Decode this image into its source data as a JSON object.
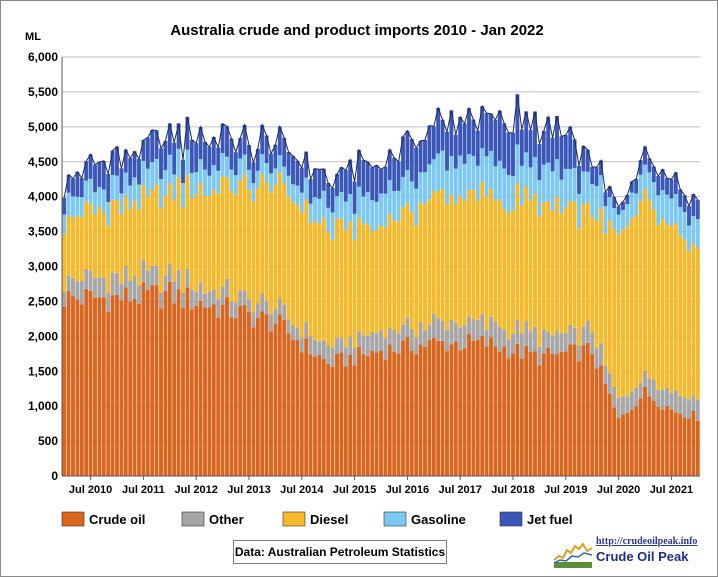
{
  "chart_data": {
    "type": "bar",
    "stacked": true,
    "title": "Australia crude and product imports 2010 - Jan 2022",
    "ylabel": "ML",
    "ylim": [
      0,
      6000
    ],
    "yticks": [
      "0",
      "500",
      "1,000",
      "1,500",
      "2,000",
      "2,500",
      "3,000",
      "3,500",
      "4,000",
      "4,500",
      "5,000",
      "5,500",
      "6,000"
    ],
    "ytick_values": [
      0,
      500,
      1000,
      1500,
      2000,
      2500,
      3000,
      3500,
      4000,
      4500,
      5000,
      5500,
      6000
    ],
    "xticks": [
      "Jul 2010",
      "Jul 2011",
      "Jul 2012",
      "Jul 2013",
      "Jul 2014",
      "Jul 2015",
      "Jul 2016",
      "Jul 2017",
      "Jul 2018",
      "Jul 2019",
      "Jul 2020",
      "Jul 2021"
    ],
    "grid": true,
    "legend_position": "bottom",
    "period_start": "Jan 2010",
    "period_end": "Jan 2022",
    "series": [
      {
        "name": "Crude oil",
        "color": "#D9651F",
        "anchors": [
          [
            2010,
            0,
            2550
          ],
          [
            2011,
            0,
            2550
          ],
          [
            2012,
            0,
            2600
          ],
          [
            2013,
            0,
            2400
          ],
          [
            2014,
            0,
            2200
          ],
          [
            2015,
            0,
            1600
          ],
          [
            2016,
            0,
            1800
          ],
          [
            2017,
            0,
            1900
          ],
          [
            2018,
            0,
            1900
          ],
          [
            2019,
            0,
            1700
          ],
          [
            2020,
            0,
            1800
          ],
          [
            2020,
            6,
            800
          ],
          [
            2021,
            0,
            1200
          ],
          [
            2021,
            6,
            950
          ],
          [
            2022,
            0,
            850
          ]
        ]
      },
      {
        "name": "Other",
        "color": "#A6A6A6",
        "anchors": [
          [
            2010,
            0,
            280
          ],
          [
            2012,
            0,
            270
          ],
          [
            2014,
            0,
            200
          ],
          [
            2016,
            0,
            260
          ],
          [
            2018,
            0,
            300
          ],
          [
            2020,
            0,
            280
          ],
          [
            2022,
            0,
            280
          ]
        ]
      },
      {
        "name": "Diesel",
        "color": "#F6B92B",
        "anchors": [
          [
            2010,
            0,
            850
          ],
          [
            2012,
            0,
            1200
          ],
          [
            2014,
            0,
            1800
          ],
          [
            2016,
            0,
            1500
          ],
          [
            2017,
            0,
            1800
          ],
          [
            2018,
            0,
            1800
          ],
          [
            2019,
            0,
            1900
          ],
          [
            2020,
            0,
            1700
          ],
          [
            2020,
            6,
            2300
          ],
          [
            2021,
            0,
            2500
          ],
          [
            2022,
            0,
            2100
          ]
        ]
      },
      {
        "name": "Gasoline",
        "color": "#7CC8F0",
        "anchors": [
          [
            2010,
            0,
            300
          ],
          [
            2012,
            0,
            380
          ],
          [
            2014,
            0,
            250
          ],
          [
            2016,
            0,
            450
          ],
          [
            2018,
            0,
            550
          ],
          [
            2020,
            0,
            480
          ],
          [
            2020,
            6,
            300
          ],
          [
            2021,
            0,
            380
          ],
          [
            2022,
            0,
            420
          ]
        ]
      },
      {
        "name": "Jet fuel",
        "color": "#3B57B8",
        "anchors": [
          [
            2010,
            0,
            300
          ],
          [
            2012,
            0,
            400
          ],
          [
            2014,
            0,
            350
          ],
          [
            2016,
            0,
            450
          ],
          [
            2018,
            0,
            620
          ],
          [
            2019,
            6,
            580
          ],
          [
            2020,
            0,
            300
          ],
          [
            2020,
            6,
            100
          ],
          [
            2021,
            0,
            250
          ],
          [
            2022,
            0,
            300
          ]
        ]
      }
    ]
  },
  "footer": {
    "source": "Data:  Australian  Petroleum Statistics",
    "logo_url": "http://crudeoilpeak.info",
    "logo_name": "Crude Oil Peak"
  }
}
